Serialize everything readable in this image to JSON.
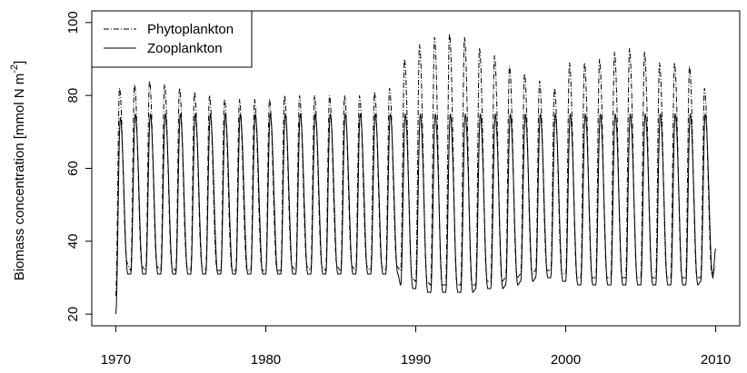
{
  "chart_data": {
    "type": "line",
    "xlabel": "",
    "ylabel": "Biomass concentration [mmol N m",
    "ylabel_sup": "-2",
    "ylabel_close": "]",
    "xlim": [
      1970,
      2010
    ],
    "ylim": [
      20,
      100
    ],
    "x_ticks": [
      1970,
      1980,
      1990,
      2000,
      2010
    ],
    "y_ticks": [
      20,
      40,
      60,
      80,
      100
    ],
    "grid": false,
    "legend": "top-left",
    "series": [
      {
        "name": "Phytoplankton",
        "line_style": "dashdot",
        "color": "#000000",
        "pattern": "annual seasonal cycle",
        "x": [
          1970.0,
          1970.25,
          1970.75,
          1971.0,
          1971.25,
          1971.75,
          1972.0,
          1972.25,
          1972.75,
          1973.0,
          1973.25,
          1973.75,
          1974.0,
          1974.25,
          1974.75,
          1975.0,
          1975.25,
          1975.75,
          1976.0,
          1976.25,
          1976.75,
          1977.0,
          1977.25,
          1977.75,
          1978.0,
          1978.25,
          1978.75,
          1979.0,
          1979.25,
          1979.75,
          1980.0,
          1980.25,
          1980.75,
          1981.0,
          1981.25,
          1981.75,
          1982.0,
          1982.25,
          1982.75,
          1983.0,
          1983.25,
          1983.75,
          1984.0,
          1984.25,
          1984.75,
          1985.0,
          1985.25,
          1985.75,
          1986.0,
          1986.25,
          1986.75,
          1987.0,
          1987.25,
          1987.75,
          1988.0,
          1988.25,
          1988.75,
          1989.0,
          1989.25,
          1989.75,
          1990.0,
          1990.25,
          1990.75,
          1991.0,
          1991.25,
          1991.75,
          1992.0,
          1992.25,
          1992.75,
          1993.0,
          1993.25,
          1993.75,
          1994.0,
          1994.25,
          1994.75,
          1995.0,
          1995.25,
          1995.75,
          1996.0,
          1996.25,
          1996.75,
          1997.0,
          1997.25,
          1997.75,
          1998.0,
          1998.25,
          1998.75,
          1999.0,
          1999.25,
          1999.75,
          2000.0,
          2000.25,
          2000.75,
          2001.0,
          2001.25,
          2001.75,
          2002.0,
          2002.25,
          2002.75,
          2003.0,
          2003.25,
          2003.75,
          2004.0,
          2004.25,
          2004.75,
          2005.0,
          2005.25,
          2005.75,
          2006.0,
          2006.25,
          2006.75,
          2007.0,
          2007.25,
          2007.75,
          2008.0,
          2008.25,
          2008.75,
          2009.0,
          2009.25,
          2009.75,
          2010.0
        ],
        "y": [
          25,
          82,
          34,
          32,
          83,
          33,
          32,
          84,
          33,
          32,
          83,
          33,
          32,
          82,
          33,
          32,
          81,
          33,
          32,
          80,
          32,
          32,
          79,
          32,
          32,
          79,
          32,
          32,
          79,
          32,
          32,
          79,
          32,
          32,
          80,
          33,
          32,
          80,
          33,
          32,
          80,
          33,
          32,
          80,
          33,
          32,
          80,
          33,
          32,
          80,
          33,
          32,
          81,
          33,
          32,
          82,
          33,
          32,
          90,
          30,
          29,
          94,
          29,
          28,
          96,
          28,
          28,
          97,
          28,
          28,
          96,
          28,
          28,
          93,
          29,
          29,
          91,
          29,
          30,
          88,
          30,
          31,
          86,
          31,
          32,
          84,
          32,
          32,
          82,
          31,
          31,
          89,
          30,
          30,
          89,
          30,
          30,
          90,
          30,
          30,
          92,
          30,
          30,
          93,
          30,
          30,
          92,
          30,
          30,
          89,
          30,
          30,
          89,
          30,
          30,
          88,
          30,
          30,
          82,
          31,
          33
        ]
      },
      {
        "name": "Zooplankton",
        "line_style": "solid",
        "color": "#000000",
        "pattern": "annual seasonal cycle",
        "x": [
          1970.0,
          1970.3,
          1970.8,
          1971.0,
          1971.3,
          1971.8,
          1972.0,
          1972.3,
          1972.8,
          1973.0,
          1973.3,
          1973.8,
          1974.0,
          1974.3,
          1974.8,
          1975.0,
          1975.3,
          1975.8,
          1976.0,
          1976.3,
          1976.8,
          1977.0,
          1977.3,
          1977.8,
          1978.0,
          1978.3,
          1978.8,
          1979.0,
          1979.3,
          1979.8,
          1980.0,
          1980.3,
          1980.8,
          1981.0,
          1981.3,
          1981.8,
          1982.0,
          1982.3,
          1982.8,
          1983.0,
          1983.3,
          1983.8,
          1984.0,
          1984.3,
          1984.8,
          1985.0,
          1985.3,
          1985.8,
          1986.0,
          1986.3,
          1986.8,
          1987.0,
          1987.3,
          1987.8,
          1988.0,
          1988.3,
          1988.8,
          1989.0,
          1989.3,
          1989.8,
          1990.0,
          1990.3,
          1990.8,
          1991.0,
          1991.3,
          1991.8,
          1992.0,
          1992.3,
          1992.8,
          1993.0,
          1993.3,
          1993.8,
          1994.0,
          1994.3,
          1994.8,
          1995.0,
          1995.3,
          1995.8,
          1996.0,
          1996.3,
          1996.8,
          1997.0,
          1997.3,
          1997.8,
          1998.0,
          1998.3,
          1998.8,
          1999.0,
          1999.3,
          1999.8,
          2000.0,
          2000.3,
          2000.8,
          2001.0,
          2001.3,
          2001.8,
          2002.0,
          2002.3,
          2002.8,
          2003.0,
          2003.3,
          2003.8,
          2004.0,
          2004.3,
          2004.8,
          2005.0,
          2005.3,
          2005.8,
          2006.0,
          2006.3,
          2006.8,
          2007.0,
          2007.3,
          2007.8,
          2008.0,
          2008.3,
          2008.8,
          2009.0,
          2009.3,
          2009.8,
          2010.0
        ],
        "y": [
          20,
          74,
          31,
          31,
          75,
          31,
          31,
          75,
          31,
          31,
          75,
          31,
          31,
          75,
          31,
          31,
          75,
          31,
          31,
          75,
          31,
          31,
          75,
          31,
          31,
          75,
          31,
          31,
          75,
          31,
          31,
          75,
          31,
          31,
          75,
          31,
          31,
          75,
          31,
          31,
          75,
          31,
          31,
          75,
          31,
          31,
          75,
          31,
          31,
          75,
          31,
          31,
          75,
          31,
          31,
          75,
          31,
          28,
          75,
          27,
          27,
          75,
          26,
          26,
          75,
          26,
          26,
          75,
          26,
          26,
          75,
          26,
          27,
          75,
          27,
          27,
          75,
          27,
          28,
          75,
          28,
          29,
          75,
          29,
          30,
          75,
          30,
          30,
          75,
          29,
          29,
          75,
          28,
          28,
          75,
          28,
          28,
          75,
          28,
          28,
          75,
          28,
          28,
          75,
          28,
          28,
          75,
          28,
          28,
          75,
          28,
          28,
          75,
          28,
          28,
          75,
          28,
          29,
          75,
          30,
          38
        ]
      }
    ]
  }
}
